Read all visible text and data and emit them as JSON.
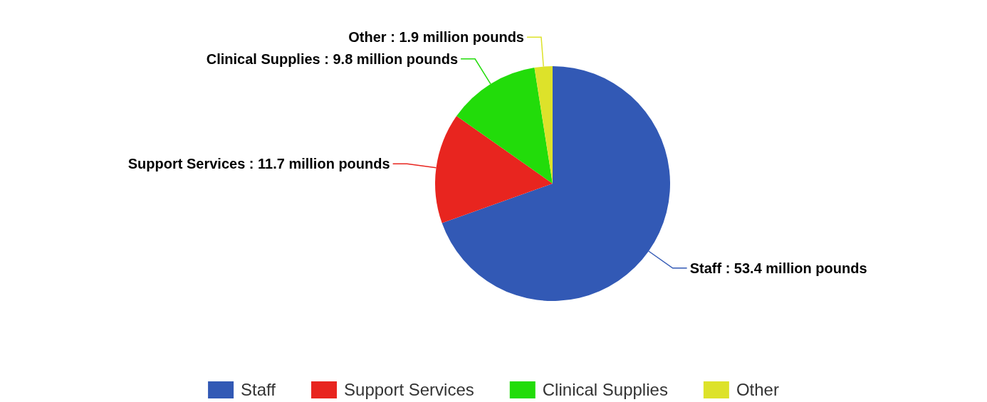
{
  "chart_data": {
    "type": "pie",
    "categories": [
      "Staff",
      "Support Services",
      "Clinical Supplies",
      "Other"
    ],
    "values": [
      53.4,
      11.7,
      9.8,
      1.9
    ],
    "colors": [
      "#3259b5",
      "#e8251f",
      "#22dc0a",
      "#dde22a"
    ],
    "value_labels": [
      "Staff : 53.4 million pounds",
      "Support Services : 11.7 million pounds",
      "Clinical Supplies : 9.8 million pounds",
      "Other : 1.9 million pounds"
    ],
    "legend": "bottom"
  }
}
